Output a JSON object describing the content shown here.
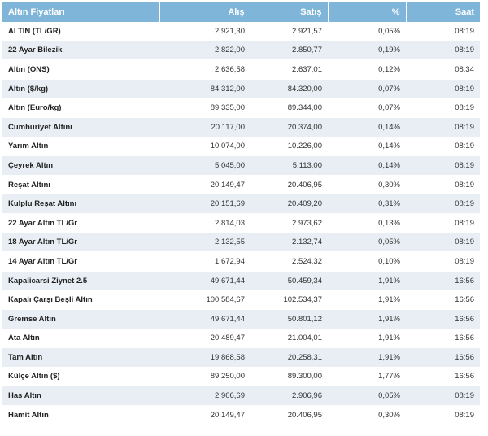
{
  "headers": [
    "Altın Fiyatları",
    "Alış",
    "Satış",
    "%",
    "Saat"
  ],
  "rows": [
    [
      "ALTIN (TL/GR)",
      "2.921,30",
      "2.921,57",
      "0,05%",
      "08:19"
    ],
    [
      "22 Ayar Bilezik",
      "2.822,00",
      "2.850,77",
      "0,19%",
      "08:19"
    ],
    [
      "Altın (ONS)",
      "2.636,58",
      "2.637,01",
      "0,12%",
      "08:34"
    ],
    [
      "Altın ($/kg)",
      "84.312,00",
      "84.320,00",
      "0,07%",
      "08:19"
    ],
    [
      "Altın (Euro/kg)",
      "89.335,00",
      "89.344,00",
      "0,07%",
      "08:19"
    ],
    [
      "Cumhuriyet Altını",
      "20.117,00",
      "20.374,00",
      "0,14%",
      "08:19"
    ],
    [
      "Yarım Altın",
      "10.074,00",
      "10.226,00",
      "0,14%",
      "08:19"
    ],
    [
      "Çeyrek Altın",
      "5.045,00",
      "5.113,00",
      "0,14%",
      "08:19"
    ],
    [
      "Reşat Altını",
      "20.149,47",
      "20.406,95",
      "0,30%",
      "08:19"
    ],
    [
      "Kulplu Reşat Altını",
      "20.151,69",
      "20.409,20",
      "0,31%",
      "08:19"
    ],
    [
      "22 Ayar Altın TL/Gr",
      "2.814,03",
      "2.973,62",
      "0,13%",
      "08:19"
    ],
    [
      "18 Ayar Altın TL/Gr",
      "2.132,55",
      "2.132,74",
      "0,05%",
      "08:19"
    ],
    [
      "14 Ayar Altın TL/Gr",
      "1.672,94",
      "2.524,32",
      "0,10%",
      "08:19"
    ],
    [
      "Kapalicarsi Ziynet 2.5",
      "49.671,44",
      "50.459,34",
      "1,91%",
      "16:56"
    ],
    [
      "Kapalı Çarşı Beşli Altın",
      "100.584,67",
      "102.534,37",
      "1,91%",
      "16:56"
    ],
    [
      "Gremse Altın",
      "49.671,44",
      "50.801,12",
      "1,91%",
      "16:56"
    ],
    [
      "Ata Altın",
      "20.489,47",
      "21.004,01",
      "1,91%",
      "16:56"
    ],
    [
      "Tam Altın",
      "19.868,58",
      "20.258,31",
      "1,91%",
      "16:56"
    ],
    [
      "Külçe Altın ($)",
      "89.250,00",
      "89.300,00",
      "1,77%",
      "16:56"
    ],
    [
      "Has Altın",
      "2.906,69",
      "2.906,96",
      "0,05%",
      "08:19"
    ],
    [
      "Hamit Altın",
      "20.149,47",
      "20.406,95",
      "0,30%",
      "08:19"
    ]
  ]
}
